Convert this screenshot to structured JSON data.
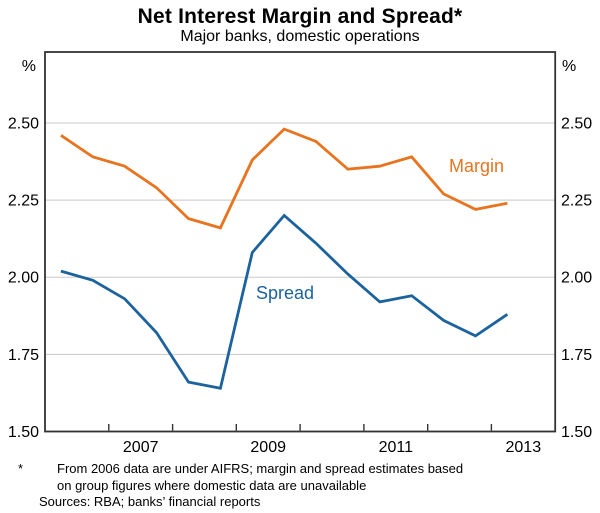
{
  "header": {
    "title": "Net Interest Margin and Spread*",
    "subtitle": "Major banks, domestic operations"
  },
  "axes": {
    "unit_left": "%",
    "unit_right": "%"
  },
  "chart_data": {
    "type": "line",
    "title": "Net Interest Margin and Spread*",
    "subtitle": "Major banks, domestic operations",
    "ylabel": "%",
    "ylim": [
      1.5,
      2.73
    ],
    "xlim_years": [
      2006,
      2014
    ],
    "grid": true,
    "gridline_values": [
      1.75,
      2.0,
      2.25,
      2.5
    ],
    "y_ticks": [
      "2.50",
      "2.25",
      "2.00",
      "1.75",
      "1.50"
    ],
    "year_tick_labels": [
      "2007",
      "2009",
      "2011",
      "2013"
    ],
    "legend_position": "inline-labels",
    "categories": [
      "2006 H1",
      "2006 H2",
      "2007 H1",
      "2007 H2",
      "2008 H1",
      "2008 H2",
      "2009 H1",
      "2009 H2",
      "2010 H1",
      "2010 H2",
      "2011 H1",
      "2011 H2",
      "2012 H1",
      "2012 H2",
      "2013 H1"
    ],
    "series": [
      {
        "name": "Margin",
        "color": "#E87420",
        "values": [
          2.46,
          2.39,
          2.36,
          2.29,
          2.19,
          2.16,
          2.38,
          2.48,
          2.44,
          2.35,
          2.36,
          2.39,
          2.27,
          2.22,
          2.24
        ]
      },
      {
        "name": "Spread",
        "color": "#1C639E",
        "values": [
          2.02,
          1.99,
          1.93,
          1.82,
          1.66,
          1.64,
          2.08,
          2.2,
          2.11,
          2.01,
          1.92,
          1.94,
          1.86,
          1.81,
          1.88
        ]
      }
    ],
    "colors": {
      "grid": "#C9C9C9",
      "frame": "#333333"
    }
  },
  "footnote": {
    "symbol": "*",
    "line1": "From 2006 data are under AIFRS; margin and spread estimates based",
    "line2": "on group figures where domestic data are unavailable",
    "sources": "Sources: RBA; banks’ financial reports"
  }
}
